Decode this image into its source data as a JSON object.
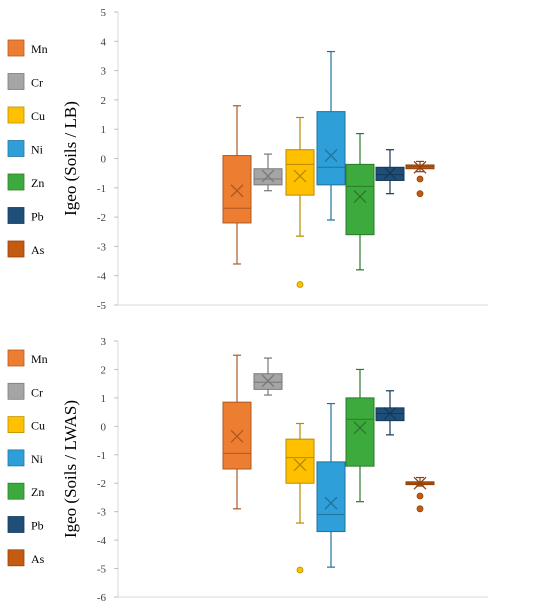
{
  "chart_data": [
    {
      "type": "box",
      "ylabel": "Igeo (Soils / LB)",
      "ylim": [
        -5,
        5
      ],
      "yticks": [
        5,
        4,
        3,
        2,
        1,
        0,
        -1,
        -2,
        -3,
        -4,
        -5
      ],
      "ytick_labels": [
        "5",
        "4",
        "3",
        "2",
        "1",
        "0",
        "-1",
        "-2",
        "-3",
        "-4",
        "-5"
      ],
      "series": [
        {
          "name": "Mn",
          "color": "#ED7D31",
          "min": -3.6,
          "q1": -2.2,
          "median": -1.7,
          "q3": 0.1,
          "max": 1.8,
          "mean": -1.1,
          "outliers": []
        },
        {
          "name": "Cr",
          "color": "#A5A5A5",
          "min": -1.1,
          "q1": -0.9,
          "median": -0.7,
          "q3": -0.35,
          "max": 0.15,
          "mean": -0.6,
          "outliers": []
        },
        {
          "name": "Cu",
          "color": "#FFC000",
          "min": -2.65,
          "q1": -1.25,
          "median": -0.2,
          "q3": 0.3,
          "max": 1.4,
          "mean": -0.6,
          "outliers": [
            -4.3
          ]
        },
        {
          "name": "Ni",
          "color": "#2E9FD8",
          "min": -2.1,
          "q1": -0.9,
          "median": -0.3,
          "q3": 1.6,
          "max": 3.65,
          "mean": 0.1,
          "outliers": []
        },
        {
          "name": "Zn",
          "color": "#3CAA3C",
          "min": -3.8,
          "q1": -2.6,
          "median": -0.95,
          "q3": -0.2,
          "max": 0.85,
          "mean": -1.3,
          "outliers": []
        },
        {
          "name": "Pb",
          "color": "#1F4E79",
          "min": -1.2,
          "q1": -0.75,
          "median": -0.55,
          "q3": -0.3,
          "max": 0.3,
          "mean": -0.5,
          "outliers": []
        },
        {
          "name": "As",
          "color": "#C55A11",
          "min": -0.45,
          "q1": -0.35,
          "median": -0.28,
          "q3": -0.22,
          "max": -0.1,
          "mean": -0.3,
          "outliers": [
            -0.7,
            -1.2
          ]
        }
      ]
    },
    {
      "type": "box",
      "ylabel": "Igeo (Soils / LWAS)",
      "ylim": [
        -6,
        3
      ],
      "yticks": [
        3,
        2,
        1,
        0,
        -1,
        -2,
        -3,
        -4,
        -5,
        -6
      ],
      "ytick_labels": [
        "3",
        "2",
        "1",
        "0",
        "-1",
        "-2",
        "-3",
        "-4",
        "-5",
        "-6"
      ],
      "series": [
        {
          "name": "Mn",
          "color": "#ED7D31",
          "min": -2.9,
          "q1": -1.5,
          "median": -0.95,
          "q3": 0.85,
          "max": 2.5,
          "mean": -0.35,
          "outliers": []
        },
        {
          "name": "Cr",
          "color": "#A5A5A5",
          "min": 1.1,
          "q1": 1.3,
          "median": 1.55,
          "q3": 1.85,
          "max": 2.4,
          "mean": 1.6,
          "outliers": []
        },
        {
          "name": "Cu",
          "color": "#FFC000",
          "min": -3.4,
          "q1": -2.0,
          "median": -1.1,
          "q3": -0.45,
          "max": 0.1,
          "mean": -1.35,
          "outliers": [
            -5.05
          ]
        },
        {
          "name": "Ni",
          "color": "#2E9FD8",
          "min": -4.95,
          "q1": -3.7,
          "median": -3.1,
          "q3": -1.25,
          "max": 0.8,
          "mean": -2.7,
          "outliers": []
        },
        {
          "name": "Zn",
          "color": "#3CAA3C",
          "min": -2.65,
          "q1": -1.4,
          "median": 0.25,
          "q3": 1.0,
          "max": 2.0,
          "mean": -0.05,
          "outliers": []
        },
        {
          "name": "Pb",
          "color": "#1F4E79",
          "min": -0.3,
          "q1": 0.2,
          "median": 0.45,
          "q3": 0.65,
          "max": 1.25,
          "mean": 0.45,
          "outliers": []
        },
        {
          "name": "As",
          "color": "#C55A11",
          "min": -2.1,
          "q1": -2.05,
          "median": -2.0,
          "q3": -1.95,
          "max": -1.8,
          "mean": -2.0,
          "outliers": [
            -2.45,
            -2.9
          ]
        }
      ]
    }
  ]
}
